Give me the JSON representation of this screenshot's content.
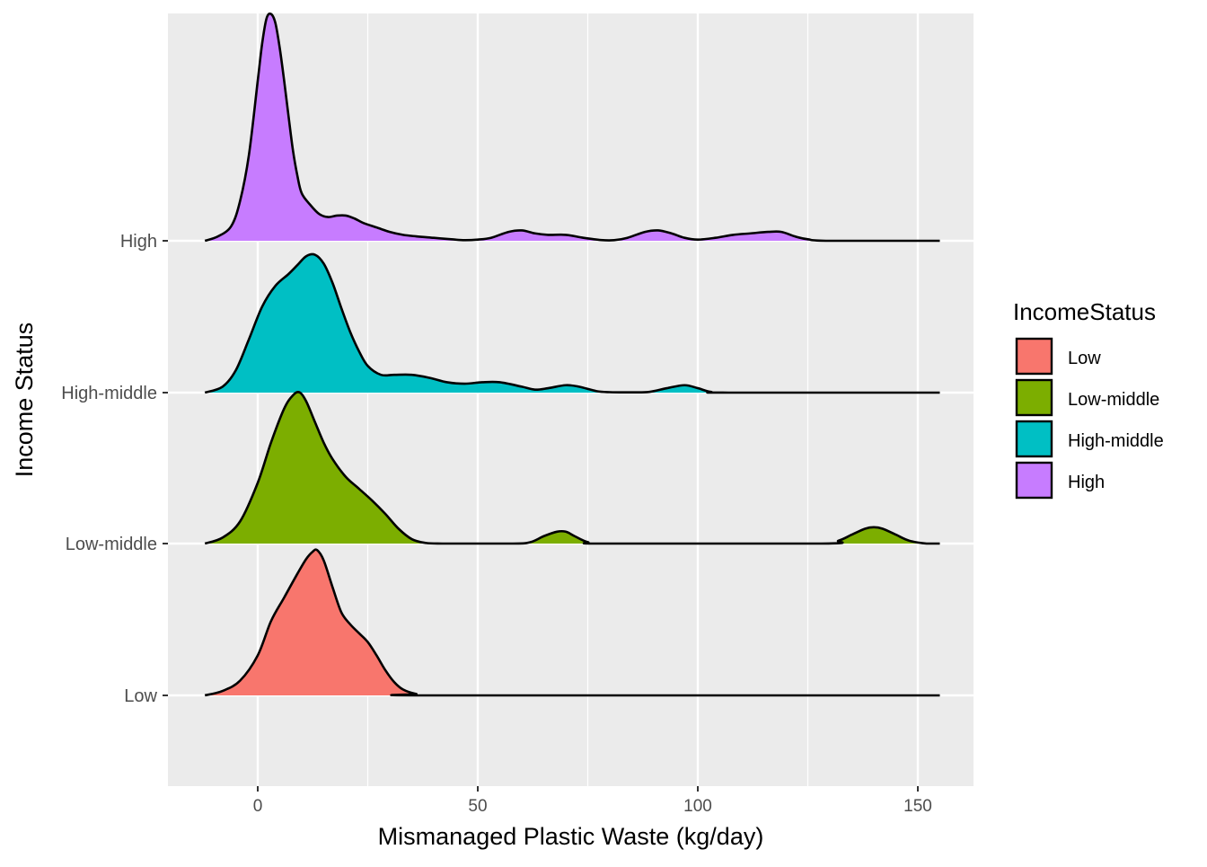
{
  "chart_data": {
    "type": "ridgeline",
    "xlabel": "Mismanaged Plastic Waste (kg/day)",
    "ylabel": "Income Status",
    "xlim": [
      -20,
      163
    ],
    "x_ticks": [
      0,
      50,
      100,
      150
    ],
    "x_minor_ticks": [
      25,
      75,
      125
    ],
    "grid": true,
    "legend": {
      "title": "IncomeStatus",
      "placement": "right",
      "entries": [
        "Low",
        "Low-middle",
        "High-middle",
        "High"
      ]
    },
    "categories": [
      "Low",
      "Low-middle",
      "High-middle",
      "High"
    ],
    "curve_range": [
      -12,
      155
    ],
    "series": [
      {
        "name": "Low",
        "color": "#F8766D",
        "density_points": [
          [
            -12,
            0
          ],
          [
            -8,
            0.03
          ],
          [
            -4,
            0.1
          ],
          [
            0,
            0.27
          ],
          [
            3,
            0.5
          ],
          [
            6,
            0.66
          ],
          [
            9,
            0.82
          ],
          [
            11,
            0.92
          ],
          [
            12.5,
            0.97
          ],
          [
            13.5,
            0.98
          ],
          [
            15,
            0.91
          ],
          [
            17,
            0.73
          ],
          [
            19,
            0.56
          ],
          [
            21,
            0.48
          ],
          [
            23,
            0.42
          ],
          [
            25,
            0.36
          ],
          [
            27,
            0.27
          ],
          [
            29,
            0.17
          ],
          [
            31,
            0.09
          ],
          [
            33,
            0.04
          ],
          [
            36,
            0.01
          ],
          [
            40,
            0
          ],
          [
            155,
            0
          ]
        ]
      },
      {
        "name": "Low-middle",
        "color": "#7CAE00",
        "density_points": [
          [
            -12,
            0
          ],
          [
            -8,
            0.04
          ],
          [
            -4,
            0.15
          ],
          [
            0,
            0.41
          ],
          [
            3,
            0.68
          ],
          [
            6,
            0.91
          ],
          [
            8,
            1.0
          ],
          [
            9.5,
            1.02
          ],
          [
            11,
            0.96
          ],
          [
            13,
            0.82
          ],
          [
            15,
            0.68
          ],
          [
            17,
            0.57
          ],
          [
            20,
            0.45
          ],
          [
            23,
            0.37
          ],
          [
            26,
            0.29
          ],
          [
            29,
            0.2
          ],
          [
            32,
            0.1
          ],
          [
            35,
            0.03
          ],
          [
            38,
            0.005
          ],
          [
            42,
            0
          ],
          [
            58,
            0
          ],
          [
            62,
            0.01
          ],
          [
            65,
            0.05
          ],
          [
            68,
            0.08
          ],
          [
            70,
            0.08
          ],
          [
            72,
            0.05
          ],
          [
            75,
            0.01
          ],
          [
            79,
            0
          ],
          [
            128,
            0
          ],
          [
            132,
            0.02
          ],
          [
            135,
            0.06
          ],
          [
            138,
            0.1
          ],
          [
            140,
            0.11
          ],
          [
            142,
            0.1
          ],
          [
            145,
            0.06
          ],
          [
            148,
            0.02
          ],
          [
            152,
            0
          ],
          [
            155,
            0
          ]
        ]
      },
      {
        "name": "High-middle",
        "color": "#00BFC4",
        "density_points": [
          [
            -12,
            0
          ],
          [
            -8,
            0.04
          ],
          [
            -5,
            0.15
          ],
          [
            -2,
            0.36
          ],
          [
            1,
            0.58
          ],
          [
            4,
            0.72
          ],
          [
            7,
            0.8
          ],
          [
            9,
            0.86
          ],
          [
            11,
            0.92
          ],
          [
            13,
            0.93
          ],
          [
            15,
            0.87
          ],
          [
            17,
            0.74
          ],
          [
            19,
            0.57
          ],
          [
            21,
            0.41
          ],
          [
            23,
            0.28
          ],
          [
            25,
            0.18
          ],
          [
            28,
            0.12
          ],
          [
            31,
            0.12
          ],
          [
            35,
            0.12
          ],
          [
            39,
            0.1
          ],
          [
            43,
            0.07
          ],
          [
            47,
            0.06
          ],
          [
            51,
            0.07
          ],
          [
            55,
            0.07
          ],
          [
            60,
            0.04
          ],
          [
            63,
            0.02
          ],
          [
            66,
            0.03
          ],
          [
            70,
            0.05
          ],
          [
            73,
            0.04
          ],
          [
            77,
            0.01
          ],
          [
            80,
            0.003
          ],
          [
            85,
            0.002
          ],
          [
            89,
            0.005
          ],
          [
            93,
            0.03
          ],
          [
            97,
            0.05
          ],
          [
            100,
            0.03
          ],
          [
            103,
            0.005
          ],
          [
            107,
            0
          ],
          [
            155,
            0
          ]
        ]
      },
      {
        "name": "High",
        "color": "#C77CFF",
        "density_points": [
          [
            -12,
            0
          ],
          [
            -9,
            0.03
          ],
          [
            -6,
            0.1
          ],
          [
            -4,
            0.27
          ],
          [
            -2,
            0.58
          ],
          [
            0,
            1.08
          ],
          [
            1,
            1.33
          ],
          [
            2,
            1.5
          ],
          [
            3,
            1.53
          ],
          [
            4,
            1.47
          ],
          [
            5,
            1.3
          ],
          [
            6,
            1.08
          ],
          [
            7,
            0.84
          ],
          [
            8,
            0.61
          ],
          [
            9,
            0.44
          ],
          [
            10,
            0.32
          ],
          [
            12,
            0.24
          ],
          [
            14,
            0.18
          ],
          [
            16,
            0.16
          ],
          [
            18,
            0.17
          ],
          [
            20,
            0.17
          ],
          [
            22,
            0.15
          ],
          [
            24,
            0.12
          ],
          [
            27,
            0.09
          ],
          [
            30,
            0.06
          ],
          [
            33,
            0.04
          ],
          [
            36,
            0.03
          ],
          [
            40,
            0.02
          ],
          [
            44,
            0.01
          ],
          [
            47,
            0.004
          ],
          [
            50,
            0.008
          ],
          [
            53,
            0.02
          ],
          [
            57,
            0.06
          ],
          [
            60,
            0.07
          ],
          [
            63,
            0.05
          ],
          [
            66,
            0.04
          ],
          [
            70,
            0.04
          ],
          [
            74,
            0.02
          ],
          [
            78,
            0.005
          ],
          [
            81,
            0.004
          ],
          [
            84,
            0.02
          ],
          [
            88,
            0.06
          ],
          [
            91,
            0.07
          ],
          [
            94,
            0.05
          ],
          [
            97,
            0.02
          ],
          [
            100,
            0.008
          ],
          [
            104,
            0.02
          ],
          [
            108,
            0.04
          ],
          [
            112,
            0.05
          ],
          [
            116,
            0.06
          ],
          [
            119,
            0.06
          ],
          [
            122,
            0.03
          ],
          [
            125,
            0.01
          ],
          [
            130,
            0
          ],
          [
            155,
            0
          ]
        ]
      }
    ]
  }
}
